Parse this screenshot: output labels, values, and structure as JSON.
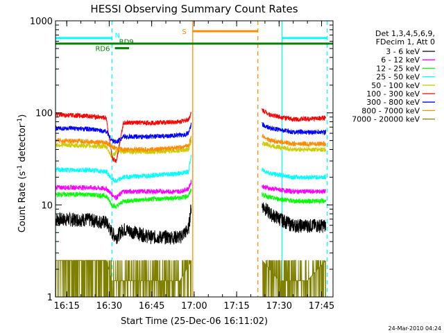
{
  "chart_data": {
    "type": "line",
    "title": "HESSI Observing Summary Count Rates",
    "xlabel": "Start Time (25-Dec-06 16:11:02)",
    "ylabel": "Count Rate (s⁻¹ detector⁻¹)",
    "ylabel_parts": [
      "Count Rate (s",
      "-1",
      " detector",
      "-1",
      ")"
    ],
    "yscale": "log",
    "ylim": [
      1,
      1000
    ],
    "xlim": [
      "16:11:02",
      "17:49:02"
    ],
    "x_ticks": [
      "16:15",
      "16:30",
      "16:45",
      "17:00",
      "17:15",
      "17:30",
      "17:45"
    ],
    "y_ticks": [
      "1",
      "10",
      "100",
      "1000"
    ],
    "grid": false,
    "legend_position": "right",
    "legend_header": [
      "Det 1,3,4,5,6,9,",
      "FDecim 1, Att 0"
    ],
    "timestamp": "24-Mar-2010 04:24",
    "series": [
      {
        "name": "3 - 6 keV",
        "color": "#000000",
        "x": [
          "16:11:02",
          "16:22:00",
          "16:29:00",
          "16:31:00",
          "16:32:30",
          "16:35:00",
          "16:45:00",
          "16:55:00",
          "16:58:00",
          "16:59:00",
          "17:24:00",
          "17:27:00",
          "17:35:00",
          "17:46:30"
        ],
        "y": [
          7,
          7,
          6.5,
          5,
          4.5,
          5.5,
          4.5,
          4.5,
          5.5,
          10,
          10,
          8,
          6,
          6
        ]
      },
      {
        "name": "6 - 12 keV",
        "color": "#ff00ff",
        "x": [
          "16:11:02",
          "16:22:00",
          "16:29:00",
          "16:31:00",
          "16:32:30",
          "16:35:00",
          "16:45:00",
          "16:55:00",
          "16:58:00",
          "16:59:00",
          "17:24:00",
          "17:27:00",
          "17:35:00",
          "17:46:30"
        ],
        "y": [
          15.5,
          15.5,
          15,
          13,
          12,
          14,
          14,
          14,
          15,
          18,
          16,
          15,
          14,
          14
        ]
      },
      {
        "name": "12 - 25 keV",
        "color": "#00ff00",
        "x": [
          "16:11:02",
          "16:22:00",
          "16:29:00",
          "16:31:00",
          "16:32:30",
          "16:35:00",
          "16:45:00",
          "16:55:00",
          "16:58:00",
          "16:59:00",
          "17:24:00",
          "17:27:00",
          "17:35:00",
          "17:46:30"
        ],
        "y": [
          13,
          13,
          12.5,
          10,
          9.5,
          11,
          11.5,
          12,
          12.5,
          15,
          13,
          12,
          11,
          11
        ]
      },
      {
        "name": "25 - 50 keV",
        "color": "#00ffff",
        "x": [
          "16:11:02",
          "16:22:00",
          "16:29:00",
          "16:31:00",
          "16:32:30",
          "16:35:00",
          "16:45:00",
          "16:55:00",
          "16:58:00",
          "16:59:00",
          "17:24:00",
          "17:27:00",
          "17:35:00",
          "17:46:30"
        ],
        "y": [
          24,
          24,
          23,
          19,
          18,
          20,
          21,
          22,
          23,
          35,
          24,
          22,
          20,
          20
        ]
      },
      {
        "name": "50 - 100 keV",
        "color": "#cccc00",
        "x": [
          "16:11:02",
          "16:22:00",
          "16:29:00",
          "16:31:00",
          "16:32:30",
          "16:35:00",
          "16:45:00",
          "16:55:00",
          "16:58:00",
          "16:59:00",
          "17:24:00",
          "17:27:00",
          "17:35:00",
          "17:46:30"
        ],
        "y": [
          45,
          44,
          43,
          33,
          38,
          38,
          38,
          39,
          40,
          50,
          47,
          44,
          40,
          40
        ]
      },
      {
        "name": "100 - 300 keV",
        "color": "#ff0000",
        "x": [
          "16:11:02",
          "16:22:00",
          "16:29:00",
          "16:31:00",
          "16:32:30",
          "16:35:00",
          "16:45:00",
          "16:55:00",
          "16:58:00",
          "16:59:00",
          "17:24:00",
          "17:27:00",
          "17:35:00",
          "17:46:30"
        ],
        "y": [
          95,
          93,
          88,
          32,
          30,
          78,
          78,
          80,
          85,
          100,
          108,
          95,
          85,
          88
        ]
      },
      {
        "name": "300 - 800 keV",
        "color": "#0000ff",
        "x": [
          "16:11:02",
          "16:22:00",
          "16:29:00",
          "16:31:00",
          "16:32:30",
          "16:35:00",
          "16:45:00",
          "16:55:00",
          "16:58:00",
          "16:59:00",
          "17:24:00",
          "17:27:00",
          "17:35:00",
          "17:46:30"
        ],
        "y": [
          68,
          67,
          63,
          50,
          48,
          55,
          55,
          57,
          60,
          75,
          75,
          68,
          62,
          62
        ]
      },
      {
        "name": "800 - 7000 keV",
        "color": "#ff8c00",
        "x": [
          "16:11:02",
          "16:22:00",
          "16:29:00",
          "16:31:00",
          "16:32:30",
          "16:35:00",
          "16:45:00",
          "16:55:00",
          "16:58:00",
          "16:59:00",
          "17:24:00",
          "17:27:00",
          "17:35:00",
          "17:46:30"
        ],
        "y": [
          50,
          49,
          47,
          43,
          41,
          40,
          40,
          42,
          44,
          55,
          56,
          50,
          46,
          46
        ]
      },
      {
        "name": "7000 - 20000 keV",
        "color": "#808000",
        "x": [
          "16:11:02",
          "16:22:00",
          "16:29:00",
          "16:31:00",
          "16:35:00",
          "16:45:00",
          "16:55:00",
          "16:59:00",
          "17:24:00",
          "17:30:00",
          "17:40:00",
          "17:46:30"
        ],
        "y": [
          2.5,
          2.5,
          2.5,
          1.5,
          1.5,
          1.5,
          1.5,
          2.5,
          2.5,
          1.5,
          1.5,
          2.5
        ]
      }
    ],
    "annotations": {
      "vertical_lines": [
        {
          "x": "16:11:02",
          "color": "#00ffff",
          "style": "solid"
        },
        {
          "x": "16:31:00",
          "color": "#00ffff",
          "style": "dashed"
        },
        {
          "x": "16:59:30",
          "color": "#ff8c00",
          "style": "solid"
        },
        {
          "x": "17:22:30",
          "color": "#ff8c00",
          "style": "dashed"
        },
        {
          "x": "17:31:00",
          "color": "#00ffff",
          "style": "solid"
        },
        {
          "x": "17:47:00",
          "color": "#00ffff",
          "style": "dashed"
        }
      ],
      "bars": [
        {
          "label": "N",
          "color": "#00ffff",
          "y": 650,
          "segments": [
            [
              "16:11:02",
              "16:31:00"
            ],
            [
              "17:31:00",
              "17:47:00"
            ]
          ]
        },
        {
          "label": "S",
          "color": "#ff8c00",
          "y": 770,
          "segments": [
            [
              "16:59:30",
              "17:22:30"
            ]
          ]
        },
        {
          "label": "RD9",
          "color": "#008000",
          "y": 565,
          "segments": [
            [
              "16:11:02",
              "17:49:02"
            ]
          ]
        },
        {
          "label": "RD6",
          "color": "#008000",
          "y": 505,
          "segments": [
            [
              "16:32:00",
              "16:37:00"
            ]
          ]
        }
      ]
    }
  }
}
